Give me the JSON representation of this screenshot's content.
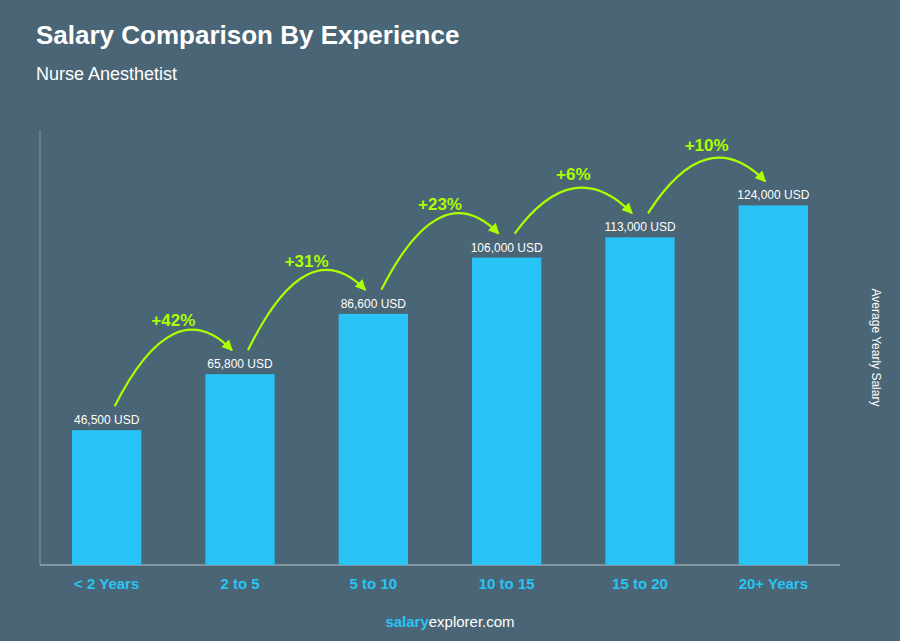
{
  "chart_data": {
    "type": "bar",
    "title": "Salary Comparison By Experience",
    "subtitle": "Nurse Anesthetist",
    "ylabel": "Average Yearly Salary",
    "categories": [
      "< 2 Years",
      "2 to 5",
      "5 to 10",
      "10 to 15",
      "15 to 20",
      "20+ Years"
    ],
    "values": [
      46500,
      65800,
      86600,
      106000,
      113000,
      124000
    ],
    "value_labels": [
      "46,500 USD",
      "65,800 USD",
      "86,600 USD",
      "106,000 USD",
      "113,000 USD",
      "124,000 USD"
    ],
    "data_labels": true,
    "change_labels": [
      "+42%",
      "+31%",
      "+23%",
      "+6%",
      "+10%"
    ],
    "watermark": [
      {
        "text": "salary",
        "color": "#29C4F5"
      },
      {
        "text": "explorer.com",
        "color": "#FFFFFF"
      }
    ],
    "color": "#29C4F5",
    "ylim": [
      0,
      150000
    ],
    "tick_labels": "x",
    "grid": false
  }
}
